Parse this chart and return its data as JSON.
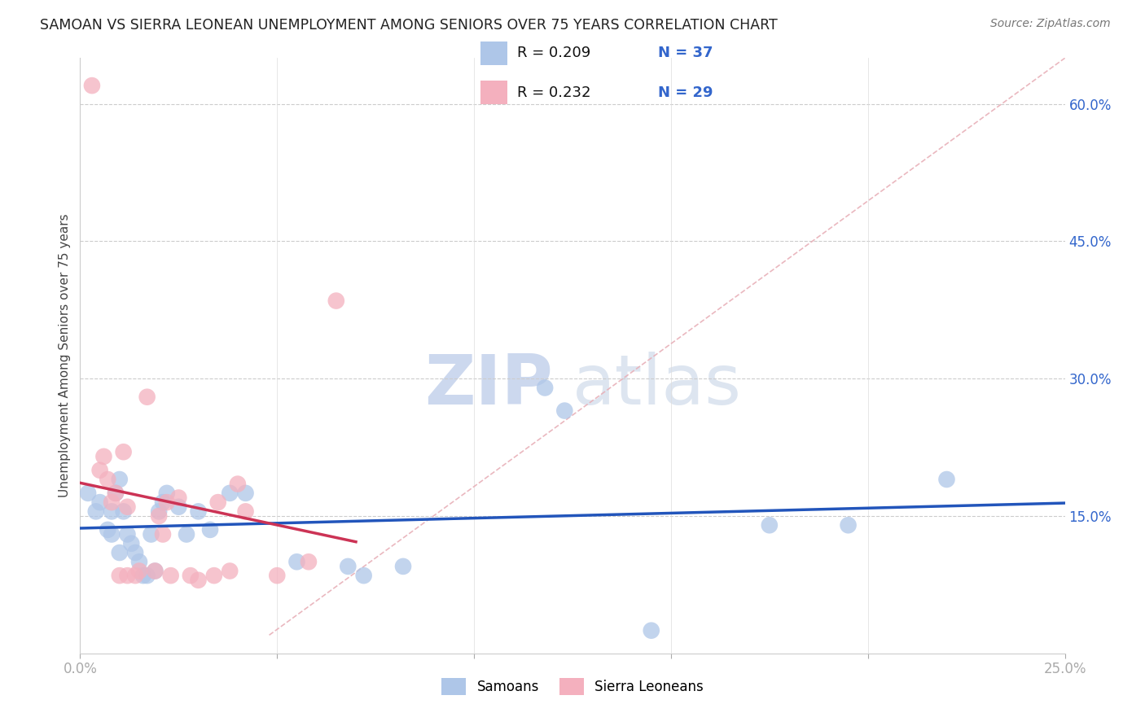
{
  "title": "SAMOAN VS SIERRA LEONEAN UNEMPLOYMENT AMONG SENIORS OVER 75 YEARS CORRELATION CHART",
  "source": "Source: ZipAtlas.com",
  "ylabel_label": "Unemployment Among Seniors over 75 years",
  "xlim": [
    0,
    0.25
  ],
  "ylim": [
    0,
    0.65
  ],
  "xticks": [
    0.0,
    0.05,
    0.1,
    0.15,
    0.2,
    0.25
  ],
  "yticks": [
    0.0,
    0.15,
    0.3,
    0.45,
    0.6
  ],
  "ytick_labels": [
    "",
    "15.0%",
    "30.0%",
    "45.0%",
    "60.0%"
  ],
  "xtick_labels": [
    "0.0%",
    "",
    "",
    "",
    "",
    "25.0%"
  ],
  "samoans_R": 0.209,
  "samoans_N": 37,
  "sierra_R": 0.232,
  "sierra_N": 29,
  "samoan_color": "#aec6e8",
  "sierra_color": "#f4b0be",
  "trend_samoan_color": "#2255bb",
  "trend_sierra_color": "#cc3355",
  "diagonal_color": "#e8b0b8",
  "legend_color_R": "#3366cc",
  "background_color": "#ffffff",
  "watermark_zip": "ZIP",
  "watermark_atlas": "atlas",
  "samoans_x": [
    0.002,
    0.004,
    0.005,
    0.007,
    0.008,
    0.008,
    0.009,
    0.01,
    0.01,
    0.011,
    0.012,
    0.013,
    0.014,
    0.015,
    0.016,
    0.017,
    0.018,
    0.019,
    0.02,
    0.021,
    0.022,
    0.025,
    0.027,
    0.03,
    0.033,
    0.038,
    0.042,
    0.055,
    0.068,
    0.072,
    0.082,
    0.118,
    0.123,
    0.145,
    0.175,
    0.195,
    0.22
  ],
  "samoans_y": [
    0.175,
    0.155,
    0.165,
    0.135,
    0.155,
    0.13,
    0.175,
    0.19,
    0.11,
    0.155,
    0.13,
    0.12,
    0.11,
    0.1,
    0.085,
    0.085,
    0.13,
    0.09,
    0.155,
    0.165,
    0.175,
    0.16,
    0.13,
    0.155,
    0.135,
    0.175,
    0.175,
    0.1,
    0.095,
    0.085,
    0.095,
    0.29,
    0.265,
    0.025,
    0.14,
    0.14,
    0.19
  ],
  "sierra_x": [
    0.003,
    0.005,
    0.006,
    0.007,
    0.008,
    0.009,
    0.01,
    0.011,
    0.012,
    0.012,
    0.014,
    0.015,
    0.017,
    0.019,
    0.02,
    0.021,
    0.022,
    0.023,
    0.025,
    0.028,
    0.03,
    0.034,
    0.035,
    0.038,
    0.04,
    0.042,
    0.05,
    0.058,
    0.065
  ],
  "sierra_y": [
    0.62,
    0.2,
    0.215,
    0.19,
    0.165,
    0.175,
    0.085,
    0.22,
    0.16,
    0.085,
    0.085,
    0.09,
    0.28,
    0.09,
    0.15,
    0.13,
    0.165,
    0.085,
    0.17,
    0.085,
    0.08,
    0.085,
    0.165,
    0.09,
    0.185,
    0.155,
    0.085,
    0.1,
    0.385
  ]
}
